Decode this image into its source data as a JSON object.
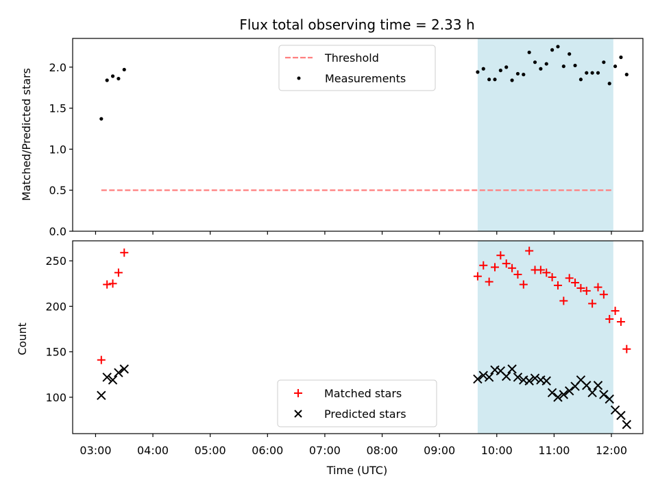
{
  "chart_data": [
    {
      "type": "scatter",
      "title": "Flux total observing time = 2.33 h",
      "ylabel": "Matched/Predicted stars",
      "xlabel": "",
      "xlim_hours": [
        2.6,
        12.55
      ],
      "ylim": [
        0,
        2.35
      ],
      "yticks": [
        0.0,
        0.5,
        1.0,
        1.5,
        2.0
      ],
      "yticklabels": [
        "0.0",
        "0.5",
        "1.0",
        "1.5",
        "2.0"
      ],
      "shaded_region": {
        "x_start": "09:40",
        "x_end": "12:02",
        "color": "#add8e6"
      },
      "legend": {
        "placement": "upper center",
        "entries": [
          "Threshold",
          "Measurements"
        ]
      },
      "threshold": {
        "name": "Threshold",
        "value": 0.5,
        "x_start": "03:06",
        "x_end": "12:02",
        "color": "#ff7f7f",
        "style": "dashed"
      },
      "series": [
        {
          "name": "Measurements",
          "color": "#000000",
          "marker": "dot",
          "x": [
            "03:06",
            "03:12",
            "03:18",
            "03:24",
            "03:30",
            "09:40",
            "09:46",
            "09:52",
            "09:58",
            "10:04",
            "10:10",
            "10:16",
            "10:22",
            "10:28",
            "10:34",
            "10:40",
            "10:46",
            "10:52",
            "10:58",
            "11:04",
            "11:10",
            "11:16",
            "11:22",
            "11:28",
            "11:34",
            "11:40",
            "11:46",
            "11:52",
            "11:58",
            "12:04",
            "12:10",
            "12:16"
          ],
          "y": [
            1.37,
            1.84,
            1.89,
            1.86,
            1.97,
            1.94,
            1.98,
            1.85,
            1.85,
            1.96,
            2.0,
            1.84,
            1.92,
            1.91,
            2.18,
            2.06,
            1.98,
            2.04,
            2.21,
            2.25,
            2.01,
            2.16,
            2.02,
            1.85,
            1.93,
            1.93,
            1.93,
            2.06,
            1.8,
            2.01,
            2.12,
            1.91
          ]
        }
      ]
    },
    {
      "type": "scatter",
      "title": "",
      "ylabel": "Count",
      "xlabel": "Time (UTC)",
      "xlim_hours": [
        2.6,
        12.55
      ],
      "ylim": [
        60,
        272
      ],
      "yticks": [
        100,
        150,
        200,
        250
      ],
      "yticklabels": [
        "100",
        "150",
        "200",
        "250"
      ],
      "xticks_hours": [
        3,
        4,
        5,
        6,
        7,
        8,
        9,
        10,
        11,
        12
      ],
      "xticklabels": [
        "03:00",
        "04:00",
        "05:00",
        "06:00",
        "07:00",
        "08:00",
        "09:00",
        "10:00",
        "11:00",
        "12:00"
      ],
      "shaded_region": {
        "x_start": "09:40",
        "x_end": "12:02",
        "color": "#add8e6"
      },
      "legend": {
        "placement": "lower center",
        "entries": [
          "Matched stars",
          "Predicted stars"
        ]
      },
      "series": [
        {
          "name": "Matched stars",
          "color": "#ff0000",
          "marker": "plus",
          "x": [
            "03:06",
            "03:12",
            "03:18",
            "03:24",
            "03:30",
            "09:40",
            "09:46",
            "09:52",
            "09:58",
            "10:04",
            "10:10",
            "10:16",
            "10:22",
            "10:28",
            "10:34",
            "10:40",
            "10:46",
            "10:52",
            "10:58",
            "11:04",
            "11:10",
            "11:16",
            "11:22",
            "11:28",
            "11:34",
            "11:40",
            "11:46",
            "11:52",
            "11:58",
            "12:04",
            "12:10",
            "12:16"
          ],
          "y": [
            141,
            224,
            225,
            237,
            259,
            233,
            245,
            227,
            243,
            256,
            247,
            242,
            235,
            224,
            261,
            240,
            240,
            237,
            232,
            223,
            206,
            231,
            226,
            220,
            217,
            203,
            221,
            213,
            186,
            195,
            183,
            153
          ]
        },
        {
          "name": "Predicted stars",
          "color": "#000000",
          "marker": "x",
          "x": [
            "03:06",
            "03:12",
            "03:18",
            "03:24",
            "03:30",
            "09:40",
            "09:46",
            "09:52",
            "09:58",
            "10:04",
            "10:10",
            "10:16",
            "10:22",
            "10:28",
            "10:34",
            "10:40",
            "10:46",
            "10:52",
            "10:58",
            "11:04",
            "11:10",
            "11:16",
            "11:22",
            "11:28",
            "11:34",
            "11:40",
            "11:46",
            "11:52",
            "11:58",
            "12:04",
            "12:10",
            "12:16"
          ],
          "y": [
            102,
            122,
            119,
            127,
            131,
            120,
            124,
            122,
            130,
            129,
            123,
            131,
            122,
            119,
            118,
            121,
            119,
            118,
            105,
            100,
            103,
            107,
            112,
            119,
            113,
            105,
            113,
            103,
            98,
            86,
            80,
            70
          ]
        }
      ]
    }
  ]
}
